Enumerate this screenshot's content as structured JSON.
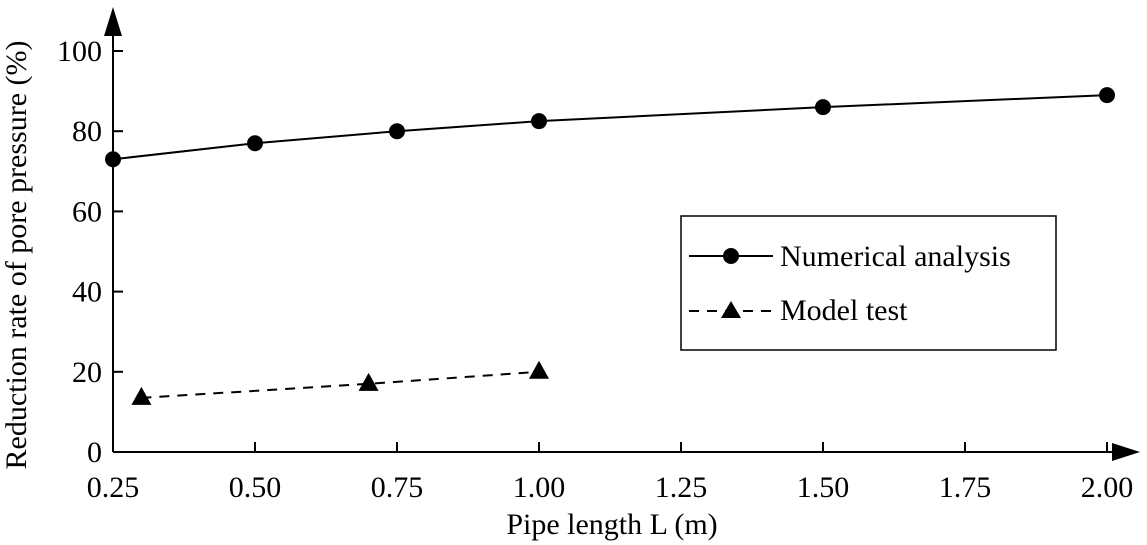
{
  "chart_data": {
    "type": "line",
    "xlabel": "Pipe length L (m)",
    "ylabel": "Reduction rate of pore pressure (%)",
    "xlim": [
      0.25,
      2.0
    ],
    "ylim": [
      0,
      100
    ],
    "x_ticks": [
      "0.25",
      "0.50",
      "0.75",
      "1.00",
      "1.25",
      "1.50",
      "1.75",
      "2.00"
    ],
    "y_ticks": [
      "0",
      "20",
      "40",
      "60",
      "80",
      "100"
    ],
    "grid": false,
    "legend_position": "right",
    "series": [
      {
        "name": "Numerical analysis",
        "marker": "circle",
        "line": "solid",
        "points": [
          {
            "x": 0.25,
            "y": 73
          },
          {
            "x": 0.5,
            "y": 77
          },
          {
            "x": 0.75,
            "y": 80
          },
          {
            "x": 1.0,
            "y": 82.5
          },
          {
            "x": 1.5,
            "y": 86
          },
          {
            "x": 2.0,
            "y": 89
          }
        ]
      },
      {
        "name": "Model test",
        "marker": "triangle",
        "line": "dashed",
        "points": [
          {
            "x": 0.3,
            "y": 13.5
          },
          {
            "x": 0.7,
            "y": 17
          },
          {
            "x": 1.0,
            "y": 20
          }
        ]
      }
    ]
  }
}
